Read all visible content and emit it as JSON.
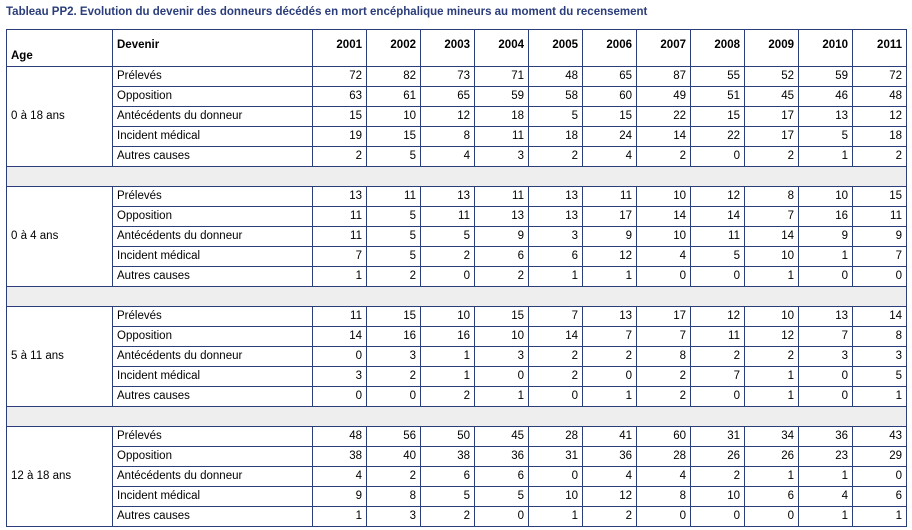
{
  "title": "Tableau PP2. Evolution du devenir des donneurs décédés en mort encéphalique mineurs au moment du recensement",
  "header": {
    "age": "Age",
    "devenir": "Devenir",
    "years": [
      "2001",
      "2002",
      "2003",
      "2004",
      "2005",
      "2006",
      "2007",
      "2008",
      "2009",
      "2010",
      "2011"
    ]
  },
  "groups": [
    {
      "age": "0 à 18 ans",
      "rows": [
        {
          "label": "Prélevés",
          "values": [
            72,
            82,
            73,
            71,
            48,
            65,
            87,
            55,
            52,
            59,
            72
          ]
        },
        {
          "label": "Opposition",
          "values": [
            63,
            61,
            65,
            59,
            58,
            60,
            49,
            51,
            45,
            46,
            48
          ]
        },
        {
          "label": "Antécédents du donneur",
          "values": [
            15,
            10,
            12,
            18,
            5,
            15,
            22,
            15,
            17,
            13,
            12
          ]
        },
        {
          "label": "Incident médical",
          "values": [
            19,
            15,
            8,
            11,
            18,
            24,
            14,
            22,
            17,
            5,
            18
          ]
        },
        {
          "label": "Autres causes",
          "values": [
            2,
            5,
            4,
            3,
            2,
            4,
            2,
            0,
            2,
            1,
            2
          ]
        }
      ]
    },
    {
      "age": "0 à 4 ans",
      "rows": [
        {
          "label": "Prélevés",
          "values": [
            13,
            11,
            13,
            11,
            13,
            11,
            10,
            12,
            8,
            10,
            15
          ]
        },
        {
          "label": "Opposition",
          "values": [
            11,
            5,
            11,
            13,
            13,
            17,
            14,
            14,
            7,
            16,
            11
          ]
        },
        {
          "label": "Antécédents du donneur",
          "values": [
            11,
            5,
            5,
            9,
            3,
            9,
            10,
            11,
            14,
            9,
            9
          ]
        },
        {
          "label": "Incident médical",
          "values": [
            7,
            5,
            2,
            6,
            6,
            12,
            4,
            5,
            10,
            1,
            7
          ]
        },
        {
          "label": "Autres causes",
          "values": [
            1,
            2,
            0,
            2,
            1,
            1,
            0,
            0,
            1,
            0,
            0
          ]
        }
      ]
    },
    {
      "age": "5 à 11 ans",
      "rows": [
        {
          "label": "Prélevés",
          "values": [
            11,
            15,
            10,
            15,
            7,
            13,
            17,
            12,
            10,
            13,
            14
          ]
        },
        {
          "label": "Opposition",
          "values": [
            14,
            16,
            16,
            10,
            14,
            7,
            7,
            11,
            12,
            7,
            8
          ]
        },
        {
          "label": "Antécédents du donneur",
          "values": [
            0,
            3,
            1,
            3,
            2,
            2,
            8,
            2,
            2,
            3,
            3
          ]
        },
        {
          "label": "Incident médical",
          "values": [
            3,
            2,
            1,
            0,
            2,
            0,
            2,
            7,
            1,
            0,
            5
          ]
        },
        {
          "label": "Autres causes",
          "values": [
            0,
            0,
            2,
            1,
            0,
            1,
            2,
            0,
            1,
            0,
            1
          ]
        }
      ]
    },
    {
      "age": "12 à 18 ans",
      "rows": [
        {
          "label": "Prélevés",
          "values": [
            48,
            56,
            50,
            45,
            28,
            41,
            60,
            31,
            34,
            36,
            43
          ]
        },
        {
          "label": "Opposition",
          "values": [
            38,
            40,
            38,
            36,
            31,
            36,
            28,
            26,
            26,
            23,
            29
          ]
        },
        {
          "label": "Antécédents du donneur",
          "values": [
            4,
            2,
            6,
            6,
            0,
            4,
            4,
            2,
            1,
            1,
            0
          ]
        },
        {
          "label": "Incident médical",
          "values": [
            9,
            8,
            5,
            5,
            10,
            12,
            8,
            10,
            6,
            4,
            6
          ]
        },
        {
          "label": "Autres causes",
          "values": [
            1,
            3,
            2,
            0,
            1,
            2,
            0,
            0,
            0,
            1,
            1
          ]
        }
      ]
    }
  ]
}
